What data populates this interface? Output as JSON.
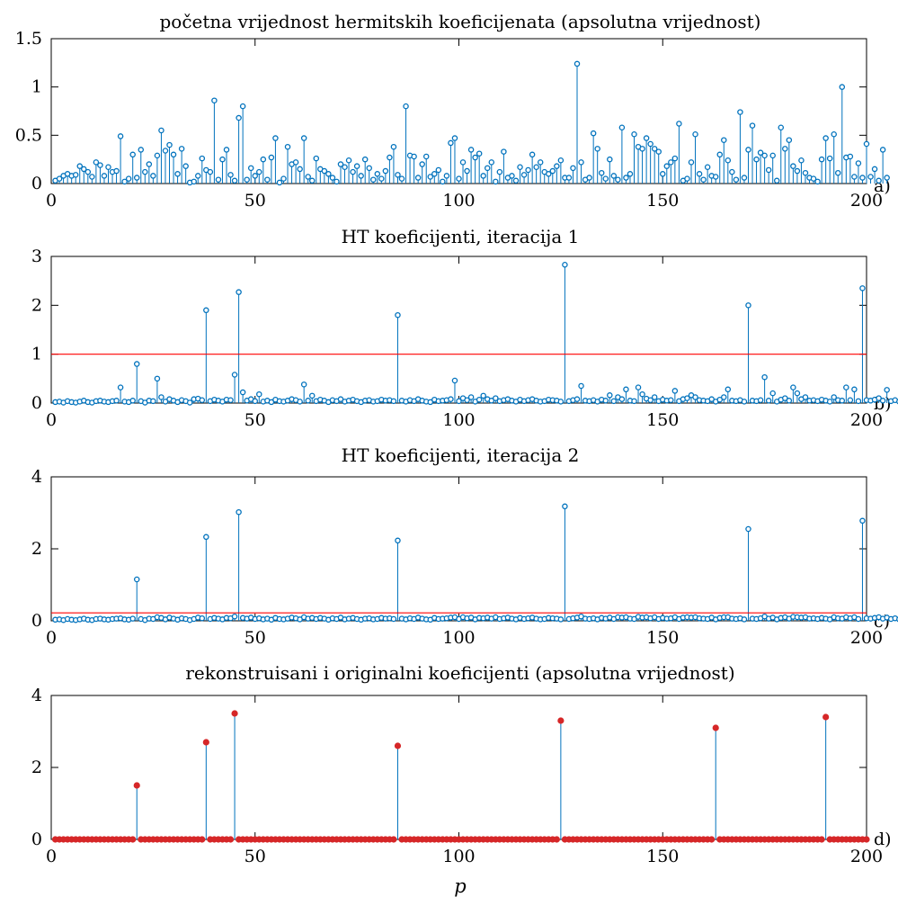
{
  "xlabel": "p",
  "colors": {
    "stem": "#0072BD",
    "threshold": "#FF0000",
    "reconstructed": "#D62728",
    "axis": "#000000"
  },
  "chart_data": [
    {
      "type": "stem",
      "panel_tag": "a)",
      "title": "početna vrijednost hermitskih koeficijenata (apsolutna vrijednost)",
      "xlim": [
        0,
        200
      ],
      "ylim": [
        0,
        1.5
      ],
      "xticks": [
        "0",
        "50",
        "100",
        "150",
        "200"
      ],
      "yticks": [
        {
          "v": 0,
          "label": "0"
        },
        {
          "v": 0.5,
          "label": "0.5"
        },
        {
          "v": 1,
          "label": "1"
        },
        {
          "v": 1.5,
          "label": "1.5"
        }
      ],
      "marker": "circle",
      "series": [
        {
          "x_start": 1,
          "x_step": 1,
          "values": [
            0.03,
            0.05,
            0.08,
            0.1,
            0.08,
            0.09,
            0.18,
            0.15,
            0.12,
            0.07,
            0.22,
            0.19,
            0.08,
            0.17,
            0.12,
            0.13,
            0.49,
            0.02,
            0.05,
            0.3,
            0.06,
            0.35,
            0.12,
            0.2,
            0.08,
            0.29,
            0.55,
            0.34,
            0.4,
            0.3,
            0.1,
            0.36,
            0.18,
            0.01,
            0.02,
            0.08,
            0.26,
            0.14,
            0.12,
            0.86,
            0.04,
            0.25,
            0.35,
            0.09,
            0.03,
            0.68,
            0.8,
            0.04,
            0.16,
            0.08,
            0.12,
            0.25,
            0.04,
            0.27,
            0.47,
            0.01,
            0.05,
            0.38,
            0.2,
            0.22,
            0.15,
            0.47,
            0.07,
            0.03,
            0.26,
            0.15,
            0.13,
            0.1,
            0.06,
            0.02,
            0.2,
            0.17,
            0.24,
            0.12,
            0.18,
            0.08,
            0.25,
            0.16,
            0.04,
            0.1,
            0.05,
            0.13,
            0.27,
            0.38,
            0.09,
            0.05,
            0.8,
            0.29,
            0.28,
            0.06,
            0.2,
            0.28,
            0.07,
            0.1,
            0.14,
            0.02,
            0.08,
            0.42,
            0.47,
            0.05,
            0.22,
            0.13,
            0.35,
            0.27,
            0.31,
            0.08,
            0.16,
            0.22,
            0.02,
            0.12,
            0.33,
            0.06,
            0.08,
            0.03,
            0.17,
            0.09,
            0.14,
            0.3,
            0.17,
            0.22,
            0.12,
            0.1,
            0.13,
            0.18,
            0.24,
            0.06,
            0.06,
            0.16,
            1.24,
            0.22,
            0.04,
            0.06,
            0.52,
            0.36,
            0.11,
            0.05,
            0.25,
            0.08,
            0.04,
            0.58,
            0.06,
            0.1,
            0.51,
            0.38,
            0.36,
            0.47,
            0.41,
            0.36,
            0.33,
            0.1,
            0.18,
            0.22,
            0.26,
            0.62,
            0.03,
            0.05,
            0.22,
            0.51,
            0.1,
            0.04,
            0.17,
            0.08,
            0.07,
            0.3,
            0.45,
            0.24,
            0.12,
            0.04,
            0.74,
            0.06,
            0.35,
            0.6,
            0.25,
            0.32,
            0.29,
            0.14,
            0.29,
            0.03,
            0.58,
            0.36,
            0.45,
            0.18,
            0.13,
            0.24,
            0.11,
            0.06,
            0.05,
            0.02,
            0.25,
            0.47,
            0.26,
            0.51,
            0.11,
            1.0,
            0.27,
            0.28,
            0.07,
            0.21,
            0.06,
            0.41,
            0.07,
            0.15,
            0.03,
            0.35,
            0.06
          ]
        }
      ]
    },
    {
      "type": "stem",
      "panel_tag": "b)",
      "title": "HT koeficijenti, iteracija 1",
      "xlim": [
        0,
        200
      ],
      "ylim": [
        0,
        3
      ],
      "xticks": [
        "0",
        "50",
        "100",
        "150",
        "200"
      ],
      "yticks": [
        {
          "v": 0,
          "label": "0"
        },
        {
          "v": 1,
          "label": "1"
        },
        {
          "v": 2,
          "label": "2"
        },
        {
          "v": 3,
          "label": "3"
        }
      ],
      "marker": "circle",
      "threshold": 1.0,
      "series": [
        {
          "x_start": 1,
          "x_step": 1,
          "values": [
            0.02,
            0.03,
            0.01,
            0.04,
            0.02,
            0.01,
            0.03,
            0.05,
            0.02,
            0.01,
            0.04,
            0.05,
            0.03,
            0.02,
            0.04,
            0.05,
            0.32,
            0.03,
            0.02,
            0.05,
            0.8,
            0.04,
            0.01,
            0.05,
            0.04,
            0.5,
            0.12,
            0.03,
            0.08,
            0.05,
            0.02,
            0.06,
            0.04,
            0.01,
            0.08,
            0.09,
            0.06,
            1.9,
            0.04,
            0.07,
            0.05,
            0.03,
            0.07,
            0.06,
            0.58,
            2.27,
            0.22,
            0.05,
            0.08,
            0.04,
            0.18,
            0.03,
            0.05,
            0.02,
            0.07,
            0.04,
            0.03,
            0.05,
            0.08,
            0.06,
            0.03,
            0.38,
            0.05,
            0.15,
            0.04,
            0.07,
            0.05,
            0.02,
            0.06,
            0.04,
            0.08,
            0.03,
            0.05,
            0.07,
            0.04,
            0.02,
            0.05,
            0.06,
            0.03,
            0.04,
            0.07,
            0.05,
            0.06,
            0.04,
            1.8,
            0.05,
            0.03,
            0.06,
            0.04,
            0.08,
            0.05,
            0.03,
            0.02,
            0.07,
            0.04,
            0.05,
            0.06,
            0.08,
            0.46,
            0.04,
            0.1,
            0.06,
            0.12,
            0.03,
            0.07,
            0.15,
            0.08,
            0.05,
            0.1,
            0.04,
            0.06,
            0.08,
            0.05,
            0.03,
            0.07,
            0.04,
            0.06,
            0.08,
            0.05,
            0.03,
            0.04,
            0.07,
            0.06,
            0.05,
            0.03,
            2.83,
            0.04,
            0.06,
            0.08,
            0.35,
            0.05,
            0.04,
            0.06,
            0.03,
            0.07,
            0.05,
            0.16,
            0.04,
            0.12,
            0.08,
            0.28,
            0.05,
            0.04,
            0.32,
            0.18,
            0.09,
            0.06,
            0.12,
            0.04,
            0.07,
            0.05,
            0.06,
            0.25,
            0.04,
            0.08,
            0.1,
            0.16,
            0.12,
            0.06,
            0.05,
            0.04,
            0.08,
            0.03,
            0.07,
            0.12,
            0.28,
            0.05,
            0.04,
            0.06,
            0.03,
            2.0,
            0.05,
            0.04,
            0.06,
            0.53,
            0.05,
            0.2,
            0.03,
            0.07,
            0.1,
            0.05,
            0.32,
            0.2,
            0.08,
            0.12,
            0.05,
            0.06,
            0.04,
            0.07,
            0.05,
            0.03,
            0.12,
            0.06,
            0.05,
            0.32,
            0.06,
            0.28,
            0.04,
            2.35,
            0.06,
            0.05,
            0.07,
            0.1,
            0.05,
            0.27,
            0.04,
            0.06,
            0.03,
            0.05,
            0.08
          ]
        }
      ]
    },
    {
      "type": "stem",
      "panel_tag": "c)",
      "title": "HT koeficijenti, iteracija 2",
      "xlim": [
        0,
        200
      ],
      "ylim": [
        0,
        4
      ],
      "xticks": [
        "0",
        "50",
        "100",
        "150",
        "200"
      ],
      "yticks": [
        {
          "v": 0,
          "label": "0"
        },
        {
          "v": 2,
          "label": "2"
        },
        {
          "v": 4,
          "label": "4"
        }
      ],
      "marker": "circle",
      "threshold": 0.22,
      "series": [
        {
          "x_start": 1,
          "x_step": 1,
          "values": [
            0.03,
            0.04,
            0.02,
            0.05,
            0.03,
            0.02,
            0.04,
            0.06,
            0.03,
            0.02,
            0.05,
            0.06,
            0.04,
            0.03,
            0.05,
            0.06,
            0.07,
            0.04,
            0.03,
            0.06,
            1.15,
            0.05,
            0.02,
            0.06,
            0.05,
            0.1,
            0.08,
            0.04,
            0.09,
            0.06,
            0.03,
            0.07,
            0.05,
            0.02,
            0.05,
            0.09,
            0.07,
            2.33,
            0.05,
            0.08,
            0.06,
            0.04,
            0.08,
            0.07,
            0.12,
            3.02,
            0.08,
            0.06,
            0.09,
            0.05,
            0.07,
            0.04,
            0.06,
            0.03,
            0.08,
            0.05,
            0.04,
            0.06,
            0.09,
            0.07,
            0.04,
            0.1,
            0.06,
            0.08,
            0.05,
            0.08,
            0.06,
            0.03,
            0.07,
            0.05,
            0.09,
            0.04,
            0.06,
            0.08,
            0.05,
            0.03,
            0.06,
            0.07,
            0.04,
            0.05,
            0.08,
            0.06,
            0.07,
            0.05,
            2.23,
            0.06,
            0.04,
            0.07,
            0.05,
            0.09,
            0.06,
            0.04,
            0.03,
            0.08,
            0.05,
            0.06,
            0.07,
            0.09,
            0.1,
            0.05,
            0.1,
            0.07,
            0.09,
            0.04,
            0.08,
            0.07,
            0.09,
            0.06,
            0.1,
            0.05,
            0.07,
            0.09,
            0.06,
            0.04,
            0.08,
            0.05,
            0.07,
            0.09,
            0.06,
            0.04,
            0.05,
            0.08,
            0.07,
            0.06,
            0.04,
            3.18,
            0.05,
            0.07,
            0.09,
            0.12,
            0.06,
            0.05,
            0.07,
            0.04,
            0.08,
            0.06,
            0.09,
            0.05,
            0.1,
            0.09,
            0.1,
            0.06,
            0.05,
            0.11,
            0.09,
            0.1,
            0.07,
            0.1,
            0.05,
            0.08,
            0.06,
            0.07,
            0.1,
            0.05,
            0.09,
            0.1,
            0.09,
            0.1,
            0.07,
            0.06,
            0.05,
            0.09,
            0.04,
            0.08,
            0.1,
            0.1,
            0.06,
            0.05,
            0.07,
            0.04,
            2.55,
            0.06,
            0.05,
            0.07,
            0.12,
            0.06,
            0.09,
            0.04,
            0.08,
            0.1,
            0.06,
            0.11,
            0.1,
            0.09,
            0.1,
            0.06,
            0.07,
            0.05,
            0.08,
            0.06,
            0.04,
            0.1,
            0.07,
            0.06,
            0.1,
            0.07,
            0.1,
            0.05,
            2.78,
            0.07,
            0.06,
            0.08,
            0.1,
            0.06,
            0.09,
            0.05,
            0.07,
            0.04,
            0.06,
            0.09
          ]
        }
      ]
    },
    {
      "type": "stem",
      "panel_tag": "d)",
      "title": "rekonstruisani i originalni koeficijenti (apsolutna vrijednost)",
      "xlim": [
        0,
        200
      ],
      "ylim": [
        0,
        4
      ],
      "xticks": [
        "0",
        "50",
        "100",
        "150",
        "200"
      ],
      "yticks": [
        {
          "v": 0,
          "label": "0"
        },
        {
          "v": 2,
          "label": "2"
        },
        {
          "v": 4,
          "label": "4"
        }
      ],
      "marker": "filled-dot",
      "series": [
        {
          "x_start": 1,
          "x_step": 1,
          "sparse": [
            [
              21,
              1.5
            ],
            [
              38,
              2.7
            ],
            [
              45,
              3.5
            ],
            [
              85,
              2.6
            ],
            [
              125,
              3.3
            ],
            [
              163,
              3.1
            ],
            [
              190,
              3.4
            ]
          ]
        }
      ]
    }
  ]
}
